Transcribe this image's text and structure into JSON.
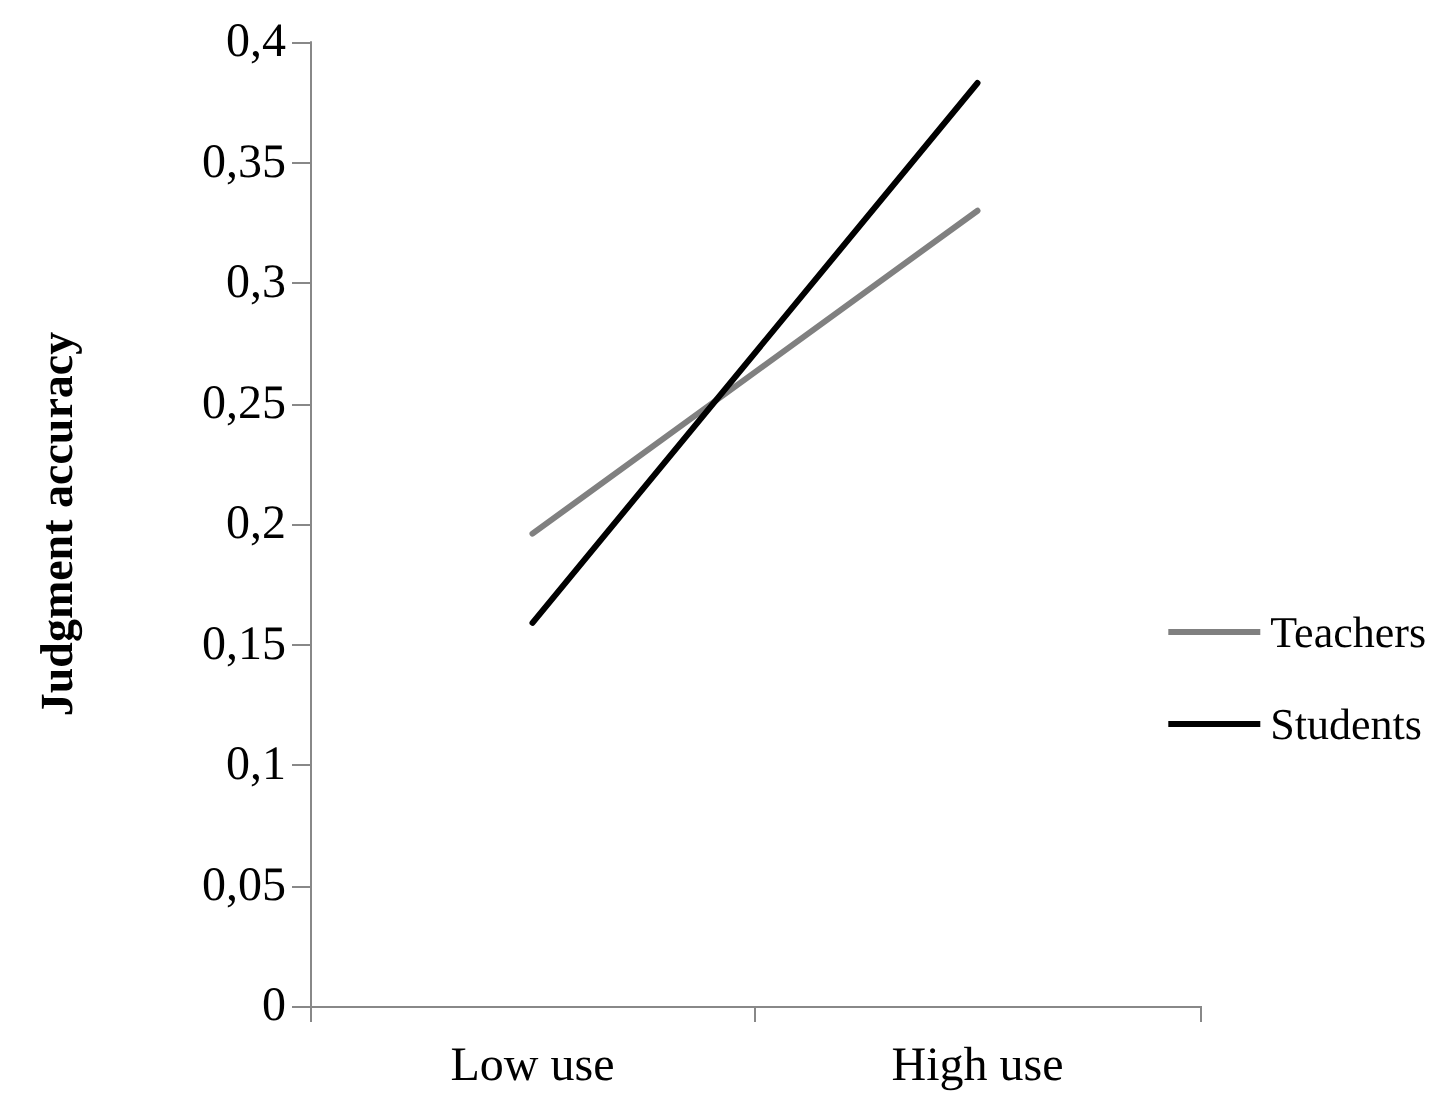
{
  "chart_data": {
    "type": "line",
    "ylabel": "Judgment accuracy",
    "categories": [
      "Low use",
      "High use"
    ],
    "series": [
      {
        "name": "Teachers",
        "color": "#808080",
        "values": [
          0.196,
          0.33
        ]
      },
      {
        "name": "Students",
        "color": "#000000",
        "values": [
          0.159,
          0.383
        ]
      }
    ],
    "ylim": [
      0,
      0.4
    ],
    "yticks": [
      {
        "value": 0,
        "label": "0"
      },
      {
        "value": 0.05,
        "label": "0,05"
      },
      {
        "value": 0.1,
        "label": "0,1"
      },
      {
        "value": 0.15,
        "label": "0,15"
      },
      {
        "value": 0.2,
        "label": "0,2"
      },
      {
        "value": 0.25,
        "label": "0,25"
      },
      {
        "value": 0.3,
        "label": "0,3"
      },
      {
        "value": 0.35,
        "label": "0,35"
      },
      {
        "value": 0.4,
        "label": "0,4"
      }
    ],
    "grid": false,
    "legend": "right",
    "marker": "none",
    "line_style": "solid"
  }
}
